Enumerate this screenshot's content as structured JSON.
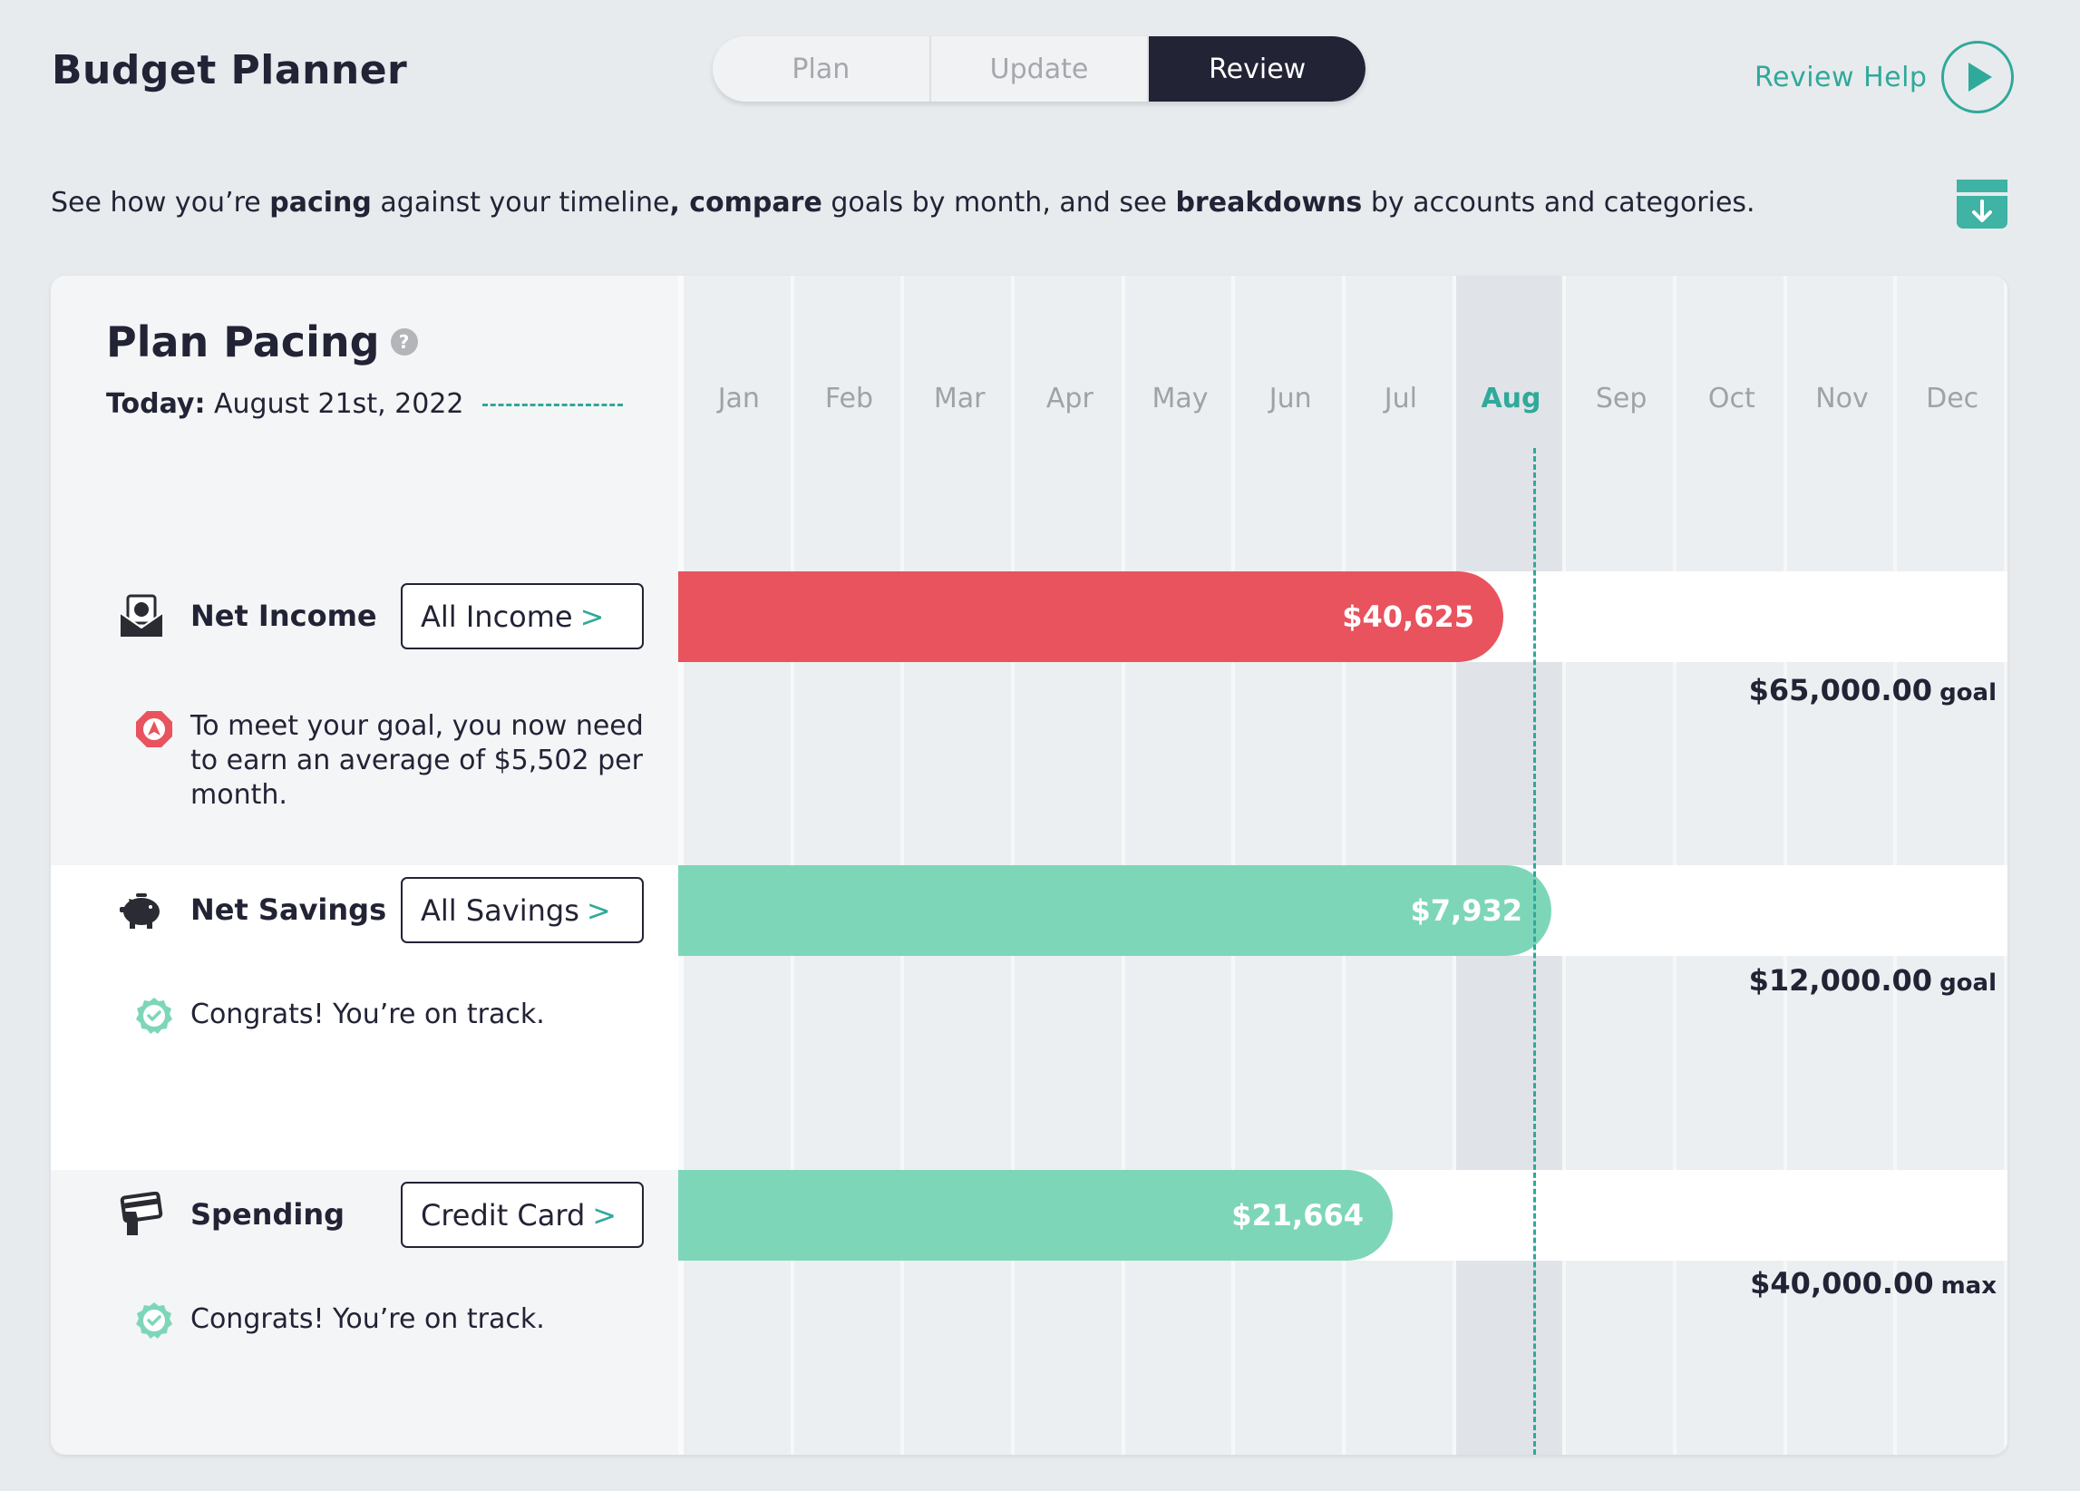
{
  "app": {
    "title": "Budget Planner"
  },
  "tabs": [
    {
      "label": "Plan",
      "active": false
    },
    {
      "label": "Update",
      "active": false
    },
    {
      "label": "Review",
      "active": true
    }
  ],
  "help": {
    "label": "Review Help",
    "icon": "play-icon"
  },
  "intro": {
    "t1": "See how you’re ",
    "b1": "pacing",
    "t2": " against your timeline",
    "b2": ", compare",
    "t3": " goals by month, and see ",
    "b3": "breakdowns",
    "t4": " by accounts and categories."
  },
  "download": {
    "icon": "download-icon"
  },
  "pacing": {
    "title": "Plan Pacing",
    "help_icon": "?",
    "today_label": "Today:",
    "today_value": " August 21st, 2022",
    "months": [
      "Jan",
      "Feb",
      "Mar",
      "Apr",
      "May",
      "Jun",
      "Jul",
      "Aug",
      "Sep",
      "Oct",
      "Nov",
      "Dec"
    ],
    "current_month": "Aug",
    "today_fraction": 0.64
  },
  "rows": [
    {
      "label": "Net Income",
      "icon": "income-envelope-icon",
      "filter": "All Income",
      "chevron": ">",
      "amount": "$40,625",
      "fraction": 0.625,
      "bar_color": "#e8535e",
      "status_icon": "warning-icon",
      "message": "To meet your goal, you now need to earn an average of $5,502 per month.",
      "goal_amount": "$65,000.00",
      "goal_unit": "goal"
    },
    {
      "label": "Net Savings",
      "icon": "piggy-bank-icon",
      "filter": "All Savings",
      "chevron": ">",
      "amount": "$7,932",
      "fraction": 0.661,
      "bar_color": "#7ed6b9",
      "status_icon": "check-badge-icon",
      "message": "Congrats! You’re on track.",
      "goal_amount": "$12,000.00",
      "goal_unit": "goal"
    },
    {
      "label": "Spending",
      "icon": "card-hand-icon",
      "filter": "Credit Card",
      "chevron": ">",
      "amount": "$21,664",
      "fraction": 0.5416,
      "bar_color": "#7ed6b9",
      "status_icon": "check-badge-icon",
      "message": "Congrats! You’re on track.",
      "goal_amount": "$40,000.00",
      "goal_unit": "max"
    }
  ]
}
